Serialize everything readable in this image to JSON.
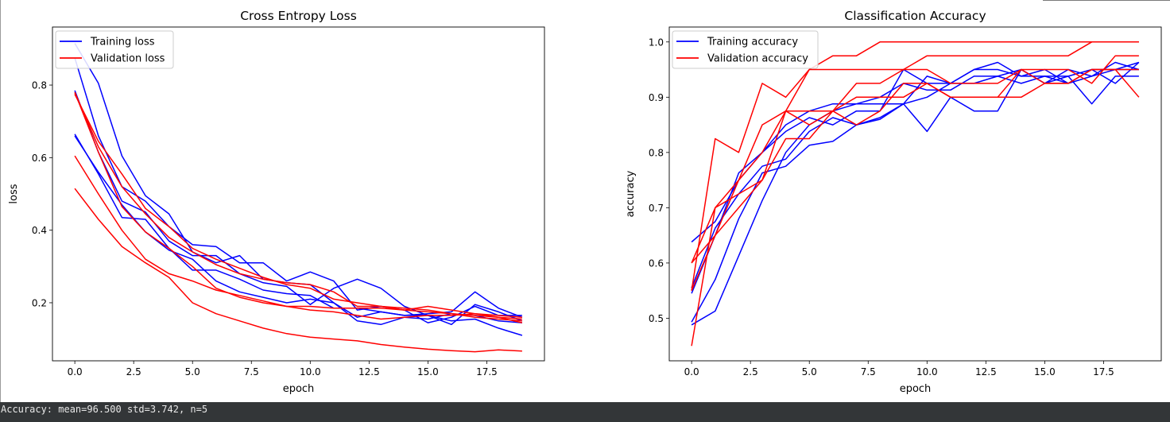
{
  "output": {
    "text": "Accuracy: mean=96.500 std=3.742, n=5"
  },
  "chart_data": [
    {
      "type": "line",
      "title": "Cross Entropy Loss",
      "xlabel": "epoch",
      "ylabel": "loss",
      "xlim": [
        -0.95,
        19.95
      ],
      "ylim": [
        0.04,
        0.96
      ],
      "xticks": [
        0,
        2.5,
        5,
        7.5,
        10,
        12.5,
        15,
        17.5
      ],
      "xtick_labels": [
        "0.0",
        "2.5",
        "5.0",
        "7.5",
        "10.0",
        "12.5",
        "15.0",
        "17.5"
      ],
      "yticks": [
        0.2,
        0.4,
        0.6,
        0.8
      ],
      "ytick_labels": [
        "0.2",
        "0.4",
        "0.6",
        "0.8"
      ],
      "legend": {
        "position": "top-left",
        "entries": [
          {
            "label": "Training loss",
            "color": "#0000ff"
          },
          {
            "label": "Validation loss",
            "color": "#ff0000"
          }
        ]
      },
      "grid": false,
      "x": [
        0,
        1,
        2,
        3,
        4,
        5,
        6,
        7,
        8,
        9,
        10,
        11,
        12,
        13,
        14,
        15,
        16,
        17,
        18,
        19
      ],
      "series": [
        {
          "group": "train",
          "color": "#0000ff",
          "values": [
            0.915,
            0.805,
            0.605,
            0.495,
            0.445,
            0.34,
            0.31,
            0.33,
            0.265,
            0.255,
            0.25,
            0.2,
            0.16,
            0.175,
            0.165,
            0.17,
            0.175,
            0.23,
            0.185,
            0.16
          ]
        },
        {
          "group": "train",
          "color": "#0000ff",
          "values": [
            0.875,
            0.66,
            0.52,
            0.48,
            0.41,
            0.36,
            0.355,
            0.31,
            0.31,
            0.26,
            0.285,
            0.26,
            0.18,
            0.19,
            0.18,
            0.145,
            0.16,
            0.19,
            0.165,
            0.165
          ]
        },
        {
          "group": "train",
          "color": "#0000ff",
          "values": [
            0.785,
            0.615,
            0.48,
            0.45,
            0.37,
            0.33,
            0.33,
            0.28,
            0.255,
            0.245,
            0.195,
            0.24,
            0.265,
            0.24,
            0.19,
            0.165,
            0.14,
            0.195,
            0.175,
            0.15
          ]
        },
        {
          "group": "train",
          "color": "#0000ff",
          "values": [
            0.665,
            0.555,
            0.435,
            0.43,
            0.35,
            0.29,
            0.29,
            0.265,
            0.235,
            0.225,
            0.22,
            0.185,
            0.185,
            0.175,
            0.165,
            0.165,
            0.15,
            0.155,
            0.13,
            0.11
          ]
        },
        {
          "group": "train",
          "color": "#0000ff",
          "values": [
            0.66,
            0.56,
            0.47,
            0.395,
            0.345,
            0.32,
            0.26,
            0.23,
            0.215,
            0.2,
            0.21,
            0.2,
            0.15,
            0.14,
            0.16,
            0.155,
            0.17,
            0.165,
            0.15,
            0.145
          ]
        },
        {
          "group": "val",
          "color": "#ff0000",
          "values": [
            0.775,
            0.645,
            0.555,
            0.46,
            0.41,
            0.35,
            0.32,
            0.295,
            0.27,
            0.25,
            0.24,
            0.21,
            0.2,
            0.19,
            0.18,
            0.175,
            0.17,
            0.165,
            0.16,
            0.155
          ]
        },
        {
          "group": "val",
          "color": "#ff0000",
          "values": [
            0.78,
            0.63,
            0.52,
            0.445,
            0.38,
            0.34,
            0.305,
            0.28,
            0.265,
            0.255,
            0.25,
            0.23,
            0.19,
            0.19,
            0.185,
            0.18,
            0.17,
            0.16,
            0.155,
            0.15
          ]
        },
        {
          "group": "val",
          "color": "#ff0000",
          "values": [
            0.78,
            0.615,
            0.465,
            0.395,
            0.35,
            0.3,
            0.24,
            0.215,
            0.2,
            0.19,
            0.19,
            0.185,
            0.185,
            0.185,
            0.18,
            0.19,
            0.18,
            0.17,
            0.165,
            0.16
          ]
        },
        {
          "group": "val",
          "color": "#ff0000",
          "values": [
            0.605,
            0.5,
            0.4,
            0.32,
            0.28,
            0.26,
            0.235,
            0.22,
            0.205,
            0.19,
            0.18,
            0.175,
            0.165,
            0.155,
            0.16,
            0.165,
            0.165,
            0.17,
            0.16,
            0.145
          ]
        },
        {
          "group": "val",
          "color": "#ff0000",
          "values": [
            0.515,
            0.43,
            0.355,
            0.31,
            0.27,
            0.2,
            0.17,
            0.15,
            0.13,
            0.115,
            0.105,
            0.1,
            0.095,
            0.085,
            0.078,
            0.072,
            0.068,
            0.065,
            0.07,
            0.067
          ]
        }
      ]
    },
    {
      "type": "line",
      "title": "Classification Accuracy",
      "xlabel": "epoch",
      "ylabel": "accuracy",
      "xlim": [
        -0.95,
        19.95
      ],
      "ylim": [
        0.423,
        1.027
      ],
      "xticks": [
        0,
        2.5,
        5,
        7.5,
        10,
        12.5,
        15,
        17.5
      ],
      "xtick_labels": [
        "0.0",
        "2.5",
        "5.0",
        "7.5",
        "10.0",
        "12.5",
        "15.0",
        "17.5"
      ],
      "yticks": [
        0.5,
        0.6,
        0.7,
        0.8,
        0.9,
        1.0
      ],
      "ytick_labels": [
        "0.5",
        "0.6",
        "0.7",
        "0.8",
        "0.9",
        "1.0"
      ],
      "legend": {
        "position": "top-left",
        "entries": [
          {
            "label": "Training accuracy",
            "color": "#0000ff"
          },
          {
            "label": "Validation accuracy",
            "color": "#ff0000"
          }
        ]
      },
      "grid": false,
      "x": [
        0,
        1,
        2,
        3,
        4,
        5,
        6,
        7,
        8,
        9,
        10,
        11,
        12,
        13,
        14,
        15,
        16,
        17,
        18,
        19
      ],
      "series": [
        {
          "group": "train",
          "color": "#0000ff",
          "values": [
            0.638,
            0.675,
            0.75,
            0.8,
            0.85,
            0.875,
            0.888,
            0.888,
            0.888,
            0.888,
            0.938,
            0.925,
            0.925,
            0.938,
            0.95,
            0.925,
            0.95,
            0.938,
            0.95,
            0.963
          ]
        },
        {
          "group": "train",
          "color": "#0000ff",
          "values": [
            0.488,
            0.513,
            0.613,
            0.713,
            0.8,
            0.85,
            0.875,
            0.888,
            0.9,
            0.925,
            0.913,
            0.913,
            0.938,
            0.938,
            0.925,
            0.938,
            0.925,
            0.95,
            0.95,
            0.95
          ]
        },
        {
          "group": "train",
          "color": "#0000ff",
          "values": [
            0.545,
            0.65,
            0.763,
            0.8,
            0.838,
            0.863,
            0.85,
            0.875,
            0.875,
            0.95,
            0.925,
            0.925,
            0.95,
            0.963,
            0.938,
            0.95,
            0.925,
            0.938,
            0.963,
            0.95
          ]
        },
        {
          "group": "train",
          "color": "#0000ff",
          "values": [
            0.555,
            0.663,
            0.725,
            0.775,
            0.788,
            0.838,
            0.863,
            0.85,
            0.863,
            0.888,
            0.838,
            0.9,
            0.875,
            0.875,
            0.95,
            0.925,
            0.938,
            0.888,
            0.938,
            0.938
          ]
        },
        {
          "group": "train",
          "color": "#0000ff",
          "values": [
            0.493,
            0.57,
            0.68,
            0.763,
            0.775,
            0.813,
            0.82,
            0.85,
            0.86,
            0.888,
            0.9,
            0.925,
            0.95,
            0.95,
            0.938,
            0.938,
            0.938,
            0.95,
            0.925,
            0.963
          ]
        },
        {
          "group": "val",
          "color": "#ff0000",
          "values": [
            0.55,
            0.825,
            0.8,
            0.925,
            0.9,
            0.95,
            0.975,
            0.975,
            1.0,
            1.0,
            1.0,
            1.0,
            1.0,
            1.0,
            1.0,
            1.0,
            1.0,
            1.0,
            1.0,
            1.0
          ]
        },
        {
          "group": "val",
          "color": "#ff0000",
          "values": [
            0.6,
            0.65,
            0.75,
            0.8,
            0.875,
            0.875,
            0.875,
            0.925,
            0.925,
            0.95,
            0.975,
            0.975,
            0.975,
            0.975,
            0.975,
            0.975,
            0.975,
            1.0,
            1.0,
            1.0
          ]
        },
        {
          "group": "val",
          "color": "#ff0000",
          "values": [
            0.6,
            0.7,
            0.725,
            0.75,
            0.875,
            0.95,
            0.95,
            0.95,
            0.95,
            0.95,
            0.95,
            0.925,
            0.925,
            0.925,
            0.95,
            0.925,
            0.925,
            0.95,
            0.95,
            0.95
          ]
        },
        {
          "group": "val",
          "color": "#ff0000",
          "values": [
            0.55,
            0.65,
            0.7,
            0.75,
            0.825,
            0.825,
            0.875,
            0.85,
            0.875,
            0.925,
            0.925,
            0.9,
            0.9,
            0.9,
            0.95,
            0.95,
            0.95,
            0.925,
            0.975,
            0.975
          ]
        },
        {
          "group": "val",
          "color": "#ff0000",
          "values": [
            0.45,
            0.7,
            0.75,
            0.85,
            0.875,
            0.85,
            0.875,
            0.9,
            0.9,
            0.9,
            0.925,
            0.9,
            0.9,
            0.9,
            0.9,
            0.925,
            0.925,
            0.95,
            0.95,
            0.9
          ]
        }
      ]
    }
  ]
}
